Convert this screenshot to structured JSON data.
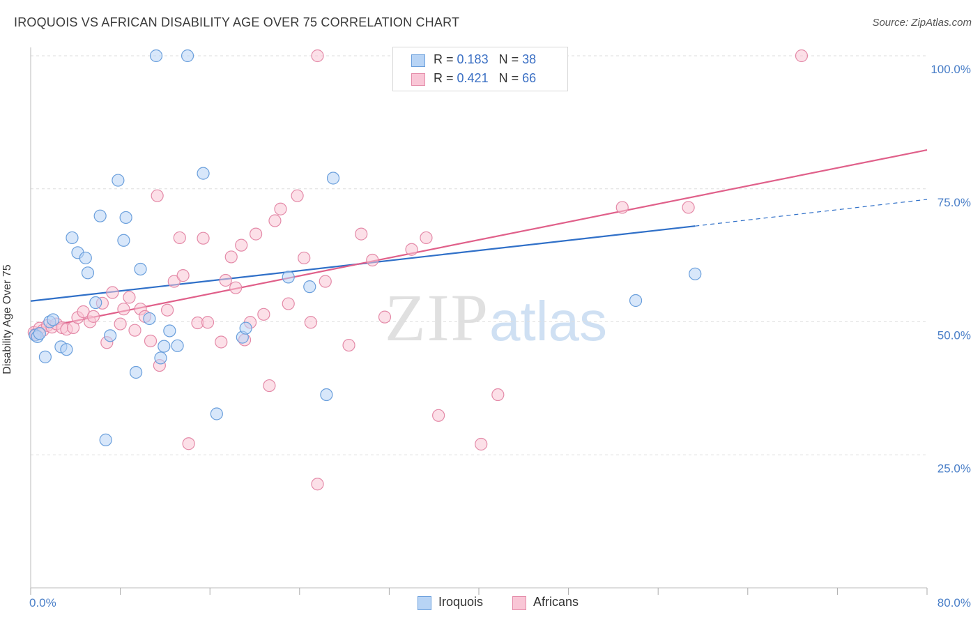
{
  "header": {
    "title": "IROQUOIS VS AFRICAN DISABILITY AGE OVER 75 CORRELATION CHART",
    "source": "Source: ZipAtlas.com"
  },
  "watermark": {
    "zip": "ZIP",
    "atlas": "atlas"
  },
  "colors": {
    "iroquois_fill": "#b8d4f5",
    "iroquois_stroke": "#6a9fdc",
    "iroquois_line": "#3070c8",
    "africans_fill": "#f9c6d6",
    "africans_stroke": "#e48aa8",
    "africans_line": "#e0608a",
    "grid": "#dedede",
    "tick_label": "#4a7fc8"
  },
  "legend_top": [
    {
      "r_label": "R =",
      "r_value": "0.183",
      "n_label": "N =",
      "n_value": "38"
    },
    {
      "r_label": "R =",
      "r_value": "0.421",
      "n_label": "N =",
      "n_value": "66"
    }
  ],
  "legend_bottom": [
    {
      "label": "Iroquois"
    },
    {
      "label": "Africans"
    }
  ],
  "chart_data": {
    "type": "scatter",
    "title": "IROQUOIS VS AFRICAN DISABILITY AGE OVER 75 CORRELATION CHART",
    "xlabel": "",
    "ylabel": "Disability Age Over 75",
    "xlim": [
      0,
      80
    ],
    "ylim": [
      0,
      100
    ],
    "x_tick_labels": [
      "0.0%",
      "80.0%"
    ],
    "y_ticks": [
      25,
      50,
      75,
      100
    ],
    "y_tick_labels": [
      "25.0%",
      "50.0%",
      "75.0%",
      "100.0%"
    ],
    "grid": true,
    "legend_position": "top-center",
    "series": [
      {
        "name": "Iroquois",
        "points": [
          [
            0.4,
            47.5
          ],
          [
            0.6,
            47.2
          ],
          [
            0.8,
            47.8
          ],
          [
            1.3,
            43.4
          ],
          [
            1.7,
            50.0
          ],
          [
            2.0,
            50.4
          ],
          [
            2.7,
            45.3
          ],
          [
            3.2,
            44.8
          ],
          [
            3.7,
            65.8
          ],
          [
            4.2,
            63.0
          ],
          [
            4.9,
            62.0
          ],
          [
            5.1,
            59.2
          ],
          [
            5.8,
            53.6
          ],
          [
            6.2,
            69.9
          ],
          [
            6.7,
            27.8
          ],
          [
            7.1,
            47.4
          ],
          [
            7.8,
            76.6
          ],
          [
            8.3,
            65.3
          ],
          [
            8.5,
            69.6
          ],
          [
            9.4,
            40.5
          ],
          [
            9.8,
            59.9
          ],
          [
            10.6,
            50.6
          ],
          [
            11.2,
            100.0
          ],
          [
            11.6,
            43.2
          ],
          [
            11.9,
            45.4
          ],
          [
            12.4,
            48.3
          ],
          [
            13.1,
            45.5
          ],
          [
            14.0,
            100.0
          ],
          [
            15.4,
            77.9
          ],
          [
            16.6,
            32.7
          ],
          [
            18.9,
            47.1
          ],
          [
            19.2,
            48.8
          ],
          [
            23.0,
            58.4
          ],
          [
            24.9,
            56.6
          ],
          [
            26.4,
            36.3
          ],
          [
            27.0,
            77.0
          ],
          [
            54.0,
            54.0
          ],
          [
            59.3,
            59.0
          ]
        ]
      },
      {
        "name": "Africans",
        "points": [
          [
            0.3,
            48.0
          ],
          [
            0.5,
            47.6
          ],
          [
            0.8,
            48.8
          ],
          [
            1.1,
            48.4
          ],
          [
            1.5,
            49.3
          ],
          [
            1.9,
            49.0
          ],
          [
            2.3,
            49.6
          ],
          [
            2.8,
            48.9
          ],
          [
            3.2,
            48.6
          ],
          [
            3.8,
            48.9
          ],
          [
            4.2,
            50.8
          ],
          [
            4.7,
            51.9
          ],
          [
            5.3,
            50.0
          ],
          [
            5.6,
            51.0
          ],
          [
            6.4,
            53.5
          ],
          [
            6.8,
            46.1
          ],
          [
            7.3,
            55.5
          ],
          [
            8.0,
            49.6
          ],
          [
            8.3,
            52.4
          ],
          [
            8.8,
            54.6
          ],
          [
            9.3,
            48.4
          ],
          [
            9.8,
            52.4
          ],
          [
            10.2,
            51.0
          ],
          [
            10.7,
            46.4
          ],
          [
            11.3,
            73.7
          ],
          [
            11.5,
            41.8
          ],
          [
            12.2,
            52.2
          ],
          [
            12.8,
            57.6
          ],
          [
            13.3,
            65.8
          ],
          [
            13.6,
            58.7
          ],
          [
            14.1,
            27.1
          ],
          [
            14.9,
            49.8
          ],
          [
            15.4,
            65.7
          ],
          [
            15.8,
            49.9
          ],
          [
            17.0,
            46.2
          ],
          [
            17.4,
            57.8
          ],
          [
            17.9,
            62.2
          ],
          [
            18.3,
            56.4
          ],
          [
            18.8,
            64.4
          ],
          [
            19.1,
            46.6
          ],
          [
            19.6,
            49.9
          ],
          [
            20.1,
            66.5
          ],
          [
            20.8,
            51.4
          ],
          [
            21.3,
            38.0
          ],
          [
            21.8,
            69.0
          ],
          [
            22.3,
            71.2
          ],
          [
            23.0,
            53.4
          ],
          [
            23.8,
            73.7
          ],
          [
            24.4,
            62.0
          ],
          [
            25.0,
            49.9
          ],
          [
            25.6,
            19.5
          ],
          [
            25.6,
            100.0
          ],
          [
            26.3,
            57.6
          ],
          [
            28.4,
            45.6
          ],
          [
            29.5,
            66.5
          ],
          [
            30.5,
            61.6
          ],
          [
            31.6,
            50.9
          ],
          [
            33.0,
            100.0
          ],
          [
            34.0,
            63.6
          ],
          [
            35.3,
            65.8
          ],
          [
            36.4,
            32.4
          ],
          [
            40.2,
            27.0
          ],
          [
            41.7,
            36.3
          ],
          [
            52.8,
            71.5
          ],
          [
            58.7,
            71.5
          ],
          [
            68.8,
            100.0
          ]
        ]
      }
    ],
    "trend_lines": [
      {
        "series": "Iroquois",
        "x_start": 0,
        "y_start": 53.9,
        "x_solid_end": 59.3,
        "y_solid_end": 68.0,
        "x_end": 80,
        "y_end": 73.0
      },
      {
        "series": "Africans",
        "x_start": 0,
        "y_start": 48.5,
        "x_end": 80,
        "y_end": 82.3
      }
    ]
  }
}
